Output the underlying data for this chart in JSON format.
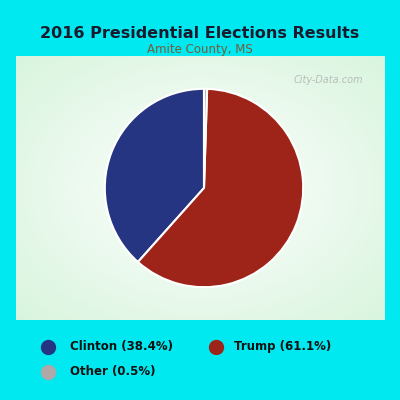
{
  "title": "2016 Presidential Elections Results",
  "subtitle": "Amite County, MS",
  "slices": [
    38.4,
    61.1,
    0.5
  ],
  "labels": [
    "Clinton",
    "Trump",
    "Other"
  ],
  "colors": [
    "#253582",
    "#9e2318",
    "#b0a8a8"
  ],
  "legend_colors": [
    "#253582",
    "#9e2318",
    "#b0a8a8"
  ],
  "legend_labels": [
    "Clinton (38.4%)",
    "Trump (61.1%)",
    "Other (0.5%)"
  ],
  "bg_outer": "#00e8f0",
  "title_color": "#1a1a2e",
  "subtitle_color": "#7a5a3a",
  "startangle": 90,
  "watermark": "City-Data.com"
}
